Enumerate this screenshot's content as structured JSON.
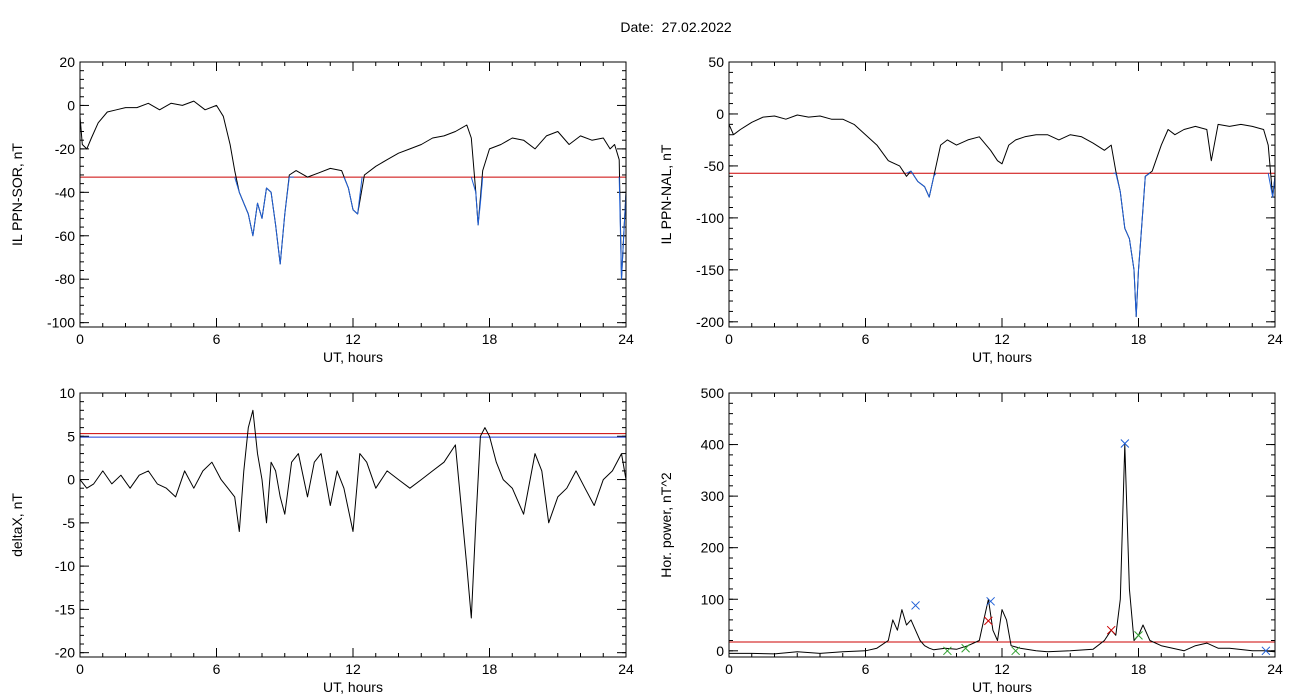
{
  "page_title": "Date:  27.02.2022",
  "chart_data": [
    {
      "type": "line",
      "ylabel": "IL PPN-SOR, nT",
      "xlabel": "UT, hours",
      "xlim": [
        0,
        24
      ],
      "ylim": [
        -102,
        20
      ],
      "xticks": [
        0,
        6,
        12,
        18,
        24
      ],
      "yticks": [
        20,
        0,
        -20,
        -40,
        -60,
        -80,
        -100
      ],
      "threshold": -33,
      "threshold_color": "#cc0000",
      "series": [
        {
          "color": "#000000",
          "x": [
            0,
            0.1,
            0.3,
            0.5,
            0.8,
            1.2,
            1.6,
            2.0,
            2.5,
            3.0,
            3.5,
            4.0,
            4.5,
            5.0,
            5.5,
            6.0,
            6.3,
            6.6,
            6.8,
            7.0,
            7.2,
            7.4,
            7.6,
            7.8,
            8.0,
            8.2,
            8.4,
            8.6,
            8.8,
            9.0,
            9.2,
            9.5,
            10.0,
            10.5,
            11.0,
            11.5,
            11.8,
            12.0,
            12.2,
            12.5,
            13.0,
            13.5,
            14.0,
            14.5,
            15.0,
            15.5,
            16.0,
            16.5,
            17.0,
            17.2,
            17.4,
            17.5,
            17.7,
            18.0,
            18.5,
            19.0,
            19.5,
            20.0,
            20.5,
            21.0,
            21.5,
            22.0,
            22.5,
            23.0,
            23.3,
            23.5,
            23.7,
            23.8,
            23.9,
            24.0
          ],
          "y": [
            -5,
            -18,
            -20,
            -15,
            -8,
            -3,
            -2,
            -1,
            -1,
            1,
            -2,
            1,
            0,
            2,
            -2,
            0,
            -5,
            -18,
            -30,
            -40,
            -45,
            -50,
            -60,
            -45,
            -52,
            -38,
            -40,
            -55,
            -73,
            -50,
            -32,
            -30,
            -33,
            -31,
            -29,
            -30,
            -38,
            -48,
            -50,
            -32,
            -28,
            -25,
            -22,
            -20,
            -18,
            -15,
            -14,
            -12,
            -9,
            -15,
            -40,
            -55,
            -30,
            -20,
            -18,
            -15,
            -16,
            -20,
            -14,
            -12,
            -18,
            -14,
            -16,
            -15,
            -20,
            -18,
            -25,
            -80,
            -60,
            -40
          ]
        },
        {
          "color": "#1f5fd6",
          "x": [
            6.8,
            7.0,
            7.2,
            7.4,
            7.6,
            7.8,
            8.0,
            8.2,
            8.4,
            8.6,
            8.8,
            9.0,
            9.2,
            9.4
          ],
          "y": [
            -33,
            -40,
            -45,
            -50,
            -60,
            -45,
            -52,
            -38,
            -40,
            -55,
            -73,
            -50,
            -33,
            -33
          ]
        },
        {
          "color": "#1f5fd6",
          "x": [
            11.6,
            11.8,
            12.0,
            12.2,
            12.4
          ],
          "y": [
            -33,
            -38,
            -48,
            -50,
            -33
          ]
        },
        {
          "color": "#1f5fd6",
          "x": [
            17.2,
            17.4,
            17.5,
            17.6,
            17.7
          ],
          "y": [
            -33,
            -40,
            -55,
            -45,
            -33
          ]
        },
        {
          "color": "#1f5fd6",
          "x": [
            23.7,
            23.8,
            23.9,
            24.0
          ],
          "y": [
            -33,
            -80,
            -60,
            -40
          ]
        }
      ]
    },
    {
      "type": "line",
      "ylabel": "IL PPN-NAL, nT",
      "xlabel": "UT, hours",
      "xlim": [
        0,
        24
      ],
      "ylim": [
        -205,
        50
      ],
      "xticks": [
        0,
        6,
        12,
        18,
        24
      ],
      "yticks": [
        50,
        0,
        -50,
        -100,
        -150,
        -200
      ],
      "threshold": -57,
      "threshold_color": "#cc0000",
      "series": [
        {
          "color": "#000000",
          "x": [
            0,
            0.2,
            0.5,
            1.0,
            1.5,
            2.0,
            2.5,
            3.0,
            3.5,
            4.0,
            4.5,
            5.0,
            5.5,
            6.0,
            6.5,
            7.0,
            7.5,
            7.8,
            8.0,
            8.3,
            8.6,
            8.8,
            9.0,
            9.3,
            9.6,
            10.0,
            10.5,
            11.0,
            11.5,
            11.8,
            12.0,
            12.3,
            12.6,
            13.0,
            13.5,
            14.0,
            14.5,
            15.0,
            15.5,
            16.0,
            16.5,
            16.8,
            17.0,
            17.2,
            17.4,
            17.6,
            17.8,
            17.9,
            18.0,
            18.1,
            18.3,
            18.6,
            19.0,
            19.3,
            19.6,
            20.0,
            20.5,
            21.0,
            21.2,
            21.5,
            22.0,
            22.5,
            23.0,
            23.5,
            23.7,
            23.9,
            24.0
          ],
          "y": [
            -10,
            -20,
            -15,
            -8,
            -3,
            -2,
            -5,
            -1,
            -3,
            -2,
            -5,
            -5,
            -10,
            -20,
            -30,
            -45,
            -50,
            -60,
            -55,
            -65,
            -70,
            -80,
            -60,
            -30,
            -25,
            -30,
            -25,
            -22,
            -35,
            -45,
            -48,
            -30,
            -25,
            -22,
            -20,
            -20,
            -25,
            -20,
            -22,
            -28,
            -35,
            -30,
            -55,
            -75,
            -110,
            -120,
            -150,
            -195,
            -150,
            -120,
            -60,
            -55,
            -30,
            -15,
            -20,
            -15,
            -12,
            -15,
            -45,
            -10,
            -12,
            -10,
            -12,
            -15,
            -30,
            -80,
            -60
          ]
        },
        {
          "color": "#1f5fd6",
          "x": [
            7.8,
            8.0,
            8.3,
            8.6,
            8.8,
            9.0,
            9.1
          ],
          "y": [
            -57,
            -55,
            -65,
            -70,
            -80,
            -60,
            -57
          ]
        },
        {
          "color": "#1f5fd6",
          "x": [
            16.9,
            17.0,
            17.2,
            17.4,
            17.6,
            17.8,
            17.9,
            18.0,
            18.1,
            18.3,
            18.5
          ],
          "y": [
            -57,
            -57,
            -75,
            -110,
            -120,
            -150,
            -195,
            -150,
            -120,
            -60,
            -57
          ]
        },
        {
          "color": "#1f5fd6",
          "x": [
            23.7,
            23.9,
            24.0
          ],
          "y": [
            -57,
            -80,
            -60
          ]
        }
      ]
    },
    {
      "type": "line",
      "ylabel": "deltaX, nT",
      "xlabel": "UT, hours",
      "xlim": [
        0,
        24
      ],
      "ylim": [
        -20.5,
        10
      ],
      "xticks": [
        0,
        6,
        12,
        18,
        24
      ],
      "yticks": [
        10,
        5,
        0,
        -5,
        -10,
        -15,
        -20
      ],
      "thresholds": [
        {
          "value": 5.3,
          "color": "#cc0000"
        },
        {
          "value": 4.9,
          "color": "#1f3fd6"
        }
      ],
      "series": [
        {
          "color": "#000000",
          "x": [
            0,
            0.3,
            0.6,
            1.0,
            1.4,
            1.8,
            2.2,
            2.6,
            3.0,
            3.4,
            3.8,
            4.2,
            4.6,
            5.0,
            5.4,
            5.8,
            6.2,
            6.5,
            6.8,
            7.0,
            7.2,
            7.4,
            7.6,
            7.8,
            8.0,
            8.2,
            8.4,
            8.6,
            8.8,
            9.0,
            9.3,
            9.6,
            10.0,
            10.3,
            10.6,
            11.0,
            11.3,
            11.6,
            12.0,
            12.3,
            12.6,
            13.0,
            13.5,
            14.0,
            14.5,
            15.0,
            15.5,
            16.0,
            16.5,
            17.0,
            17.2,
            17.4,
            17.6,
            17.8,
            18.0,
            18.3,
            18.6,
            19.0,
            19.5,
            20.0,
            20.3,
            20.6,
            21.0,
            21.4,
            21.8,
            22.2,
            22.6,
            23.0,
            23.4,
            23.8,
            24.0
          ],
          "y": [
            0,
            -1,
            -0.5,
            1,
            -0.5,
            0.5,
            -1,
            0.5,
            1,
            -0.5,
            -1,
            -2,
            1,
            -1,
            1,
            2,
            0,
            -1,
            -2,
            -6,
            1,
            6,
            8,
            3,
            0,
            -5,
            2,
            1,
            -2,
            -4,
            2,
            3,
            -2,
            2,
            3,
            -3,
            1,
            -1,
            -6,
            3,
            2,
            -1,
            1,
            0,
            -1,
            0,
            1,
            2,
            4,
            -10,
            -16,
            -5,
            5,
            6,
            5,
            2,
            0,
            -1,
            -4,
            3,
            1,
            -5,
            -2,
            -1,
            1,
            -1,
            -3,
            0,
            1,
            3,
            0
          ]
        }
      ]
    },
    {
      "type": "line",
      "ylabel": "Hor. power, nT^2",
      "xlabel": "UT, hours",
      "xlim": [
        0,
        24
      ],
      "ylim": [
        -12,
        500
      ],
      "xticks": [
        0,
        6,
        12,
        18,
        24
      ],
      "yticks": [
        500,
        400,
        300,
        200,
        100,
        0
      ],
      "threshold": 17,
      "threshold_color": "#cc0000",
      "series": [
        {
          "color": "#000000",
          "x": [
            0,
            1,
            2,
            3,
            4,
            5,
            6,
            6.5,
            7.0,
            7.2,
            7.4,
            7.6,
            7.8,
            8.0,
            8.2,
            8.4,
            8.6,
            8.8,
            9.0,
            9.5,
            10.0,
            10.5,
            11.0,
            11.2,
            11.4,
            11.6,
            11.8,
            12.0,
            12.2,
            12.4,
            12.8,
            13.5,
            14,
            15,
            16,
            16.5,
            16.8,
            17.0,
            17.2,
            17.4,
            17.6,
            17.8,
            18.0,
            18.2,
            18.5,
            19.0,
            20.0,
            20.5,
            21.0,
            21.5,
            22.0,
            23.0,
            23.5,
            24.0
          ],
          "y": [
            -5,
            -5,
            -6,
            -2,
            -5,
            -2,
            0,
            5,
            20,
            60,
            40,
            80,
            50,
            60,
            40,
            20,
            10,
            5,
            2,
            5,
            3,
            10,
            20,
            60,
            100,
            40,
            20,
            80,
            60,
            10,
            5,
            0,
            -2,
            0,
            3,
            20,
            40,
            30,
            100,
            400,
            120,
            20,
            30,
            50,
            20,
            10,
            0,
            10,
            15,
            5,
            5,
            0,
            0,
            -2
          ]
        }
      ],
      "markers": [
        {
          "x": 8.2,
          "y": 88,
          "color": "#1f5fd6",
          "symbol": "x"
        },
        {
          "x": 11.5,
          "y": 96,
          "color": "#1f5fd6",
          "symbol": "x"
        },
        {
          "x": 17.4,
          "y": 402,
          "color": "#1f5fd6",
          "symbol": "x"
        },
        {
          "x": 23.6,
          "y": 0,
          "color": "#1f5fd6",
          "symbol": "x"
        },
        {
          "x": 11.4,
          "y": 58,
          "color": "#cc0000",
          "symbol": "x"
        },
        {
          "x": 16.8,
          "y": 40,
          "color": "#cc0000",
          "symbol": "x"
        },
        {
          "x": 9.6,
          "y": 0,
          "color": "#2fa02f",
          "symbol": "x"
        },
        {
          "x": 10.4,
          "y": 5,
          "color": "#2fa02f",
          "symbol": "x"
        },
        {
          "x": 12.6,
          "y": 0,
          "color": "#2fa02f",
          "symbol": "x"
        },
        {
          "x": 18.0,
          "y": 30,
          "color": "#2fa02f",
          "symbol": "x"
        }
      ]
    }
  ]
}
